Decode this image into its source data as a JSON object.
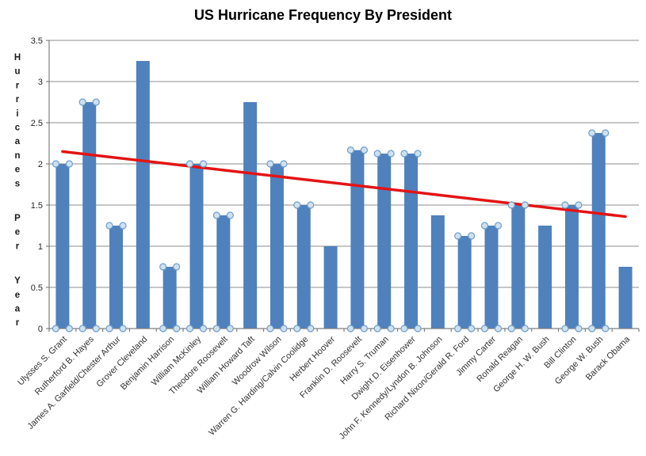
{
  "colors": {
    "bar": "#4f81bd",
    "marker_fill": "#cfe0ef",
    "marker_stroke": "#6e9dc9",
    "trend": "#e31414",
    "grid": "#8c8c8c",
    "axis": "#7f7f7f",
    "tick_text": "#262626",
    "category_text": "#333333",
    "background": "#ffffff"
  },
  "chart_data": {
    "type": "bar",
    "title": "US Hurricane Frequency By President",
    "xlabel": "",
    "ylabel": "Hurricanes Per Year",
    "ylim": [
      0,
      3.5
    ],
    "ytick_step": 0.5,
    "yticks": [
      "0",
      "0.5",
      "1",
      "1.5",
      "2",
      "2.5",
      "3",
      "3.5"
    ],
    "grid": true,
    "legend": "none",
    "categories": [
      "Ulysses S. Grant",
      "Rutherford B. Hayes",
      "James A. Garfield/Chester Arthur",
      "Grover Cleveland",
      "Benjamin Harrison",
      "William McKinley",
      "Theodore Roosevelt",
      "William Howard Taft",
      "Woodrow Wilson",
      "Warren G. Harding/Calvin Coolidge",
      "Herbert Hoover",
      "Franklin D. Roosevelt",
      "Harry S. Truman",
      "Dwight D. Eisenhower",
      "John F. Kennedy/Lyndon B. Johnson",
      "Richard Nixon/Gerald R. Ford",
      "Jimmy Carter",
      "Ronald Reagan",
      "George H. W. Bush",
      "Bill Clinton",
      "George W. Bush",
      "Barack Obama"
    ],
    "values": [
      2,
      2.75,
      1.25,
      3.25,
      0.75,
      2,
      1.375,
      2.75,
      2,
      1.5,
      1,
      2.167,
      2.125,
      2.125,
      1.375,
      1.125,
      1.25,
      1.5,
      1.25,
      1.5,
      2.375,
      0.75
    ],
    "selection_markers": [
      true,
      true,
      true,
      false,
      true,
      true,
      true,
      false,
      true,
      true,
      false,
      true,
      true,
      true,
      false,
      true,
      true,
      true,
      false,
      true,
      true,
      false
    ],
    "trendline": {
      "start_value": 2.15,
      "end_value": 1.36
    }
  }
}
